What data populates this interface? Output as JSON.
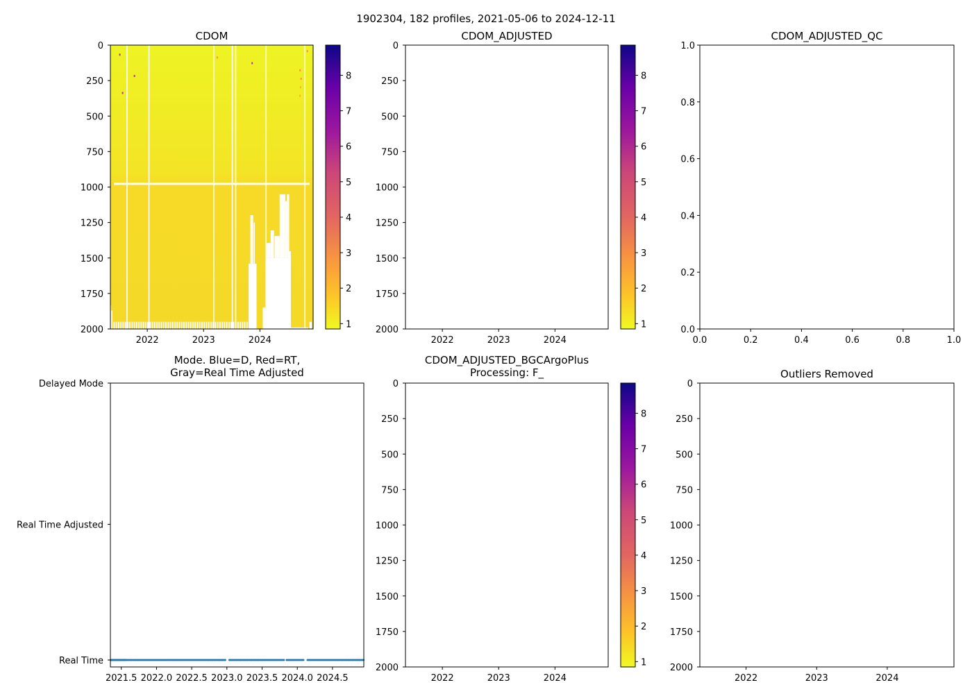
{
  "suptitle": "1902304, 182 profiles, 2021-05-06 to 2024-12-11",
  "colors": {
    "data_yellow_top": "#eef424",
    "data_yellow_bottom": "#f6d92a",
    "mode_point": "#1f77b4"
  },
  "chart_data": [
    {
      "id": "cdom",
      "type": "heatmap",
      "title": "CDOM",
      "x_range": [
        2021.345,
        2024.945
      ],
      "x_ticks": [
        {
          "v": 2022,
          "label": "2022"
        },
        {
          "v": 2023,
          "label": "2023"
        },
        {
          "v": 2024,
          "label": "2024"
        }
      ],
      "y_range": [
        2000,
        0
      ],
      "y_ticks": [
        {
          "v": 0,
          "label": "0"
        },
        {
          "v": 250,
          "label": "250"
        },
        {
          "v": 500,
          "label": "500"
        },
        {
          "v": 750,
          "label": "750"
        },
        {
          "v": 1000,
          "label": "1000"
        },
        {
          "v": 1250,
          "label": "1250"
        },
        {
          "v": 1500,
          "label": "1500"
        },
        {
          "v": 1750,
          "label": "1750"
        },
        {
          "v": 2000,
          "label": "2000"
        }
      ],
      "profiles": 182,
      "value_range_typical": [
        0.9,
        1.6
      ],
      "colorbar": {
        "colormap": "plasma_r",
        "range": [
          0.85,
          8.85
        ],
        "ticks": [
          {
            "v": 1,
            "label": "1"
          },
          {
            "v": 2,
            "label": "2"
          },
          {
            "v": 3,
            "label": "3"
          },
          {
            "v": 4,
            "label": "4"
          },
          {
            "v": 5,
            "label": "5"
          },
          {
            "v": 6,
            "label": "6"
          },
          {
            "v": 7,
            "label": "7"
          },
          {
            "v": 8,
            "label": "8"
          }
        ]
      },
      "missing_profile_dates": [
        2021.63,
        2022.02,
        2023.17,
        2023.5,
        2023.56,
        2024.1,
        2024.79
      ],
      "missing_depth_band": [
        970,
        985
      ],
      "missing_blocks": [
        [
          2023.8,
          2023.94,
          1540,
          2000
        ],
        [
          2023.83,
          2023.88,
          1198,
          1540
        ],
        [
          2023.89,
          2023.91,
          1250,
          1540
        ],
        [
          2024.05,
          2024.13,
          1848,
          2000
        ],
        [
          2024.1,
          2024.52,
          1500,
          2000
        ],
        [
          2024.12,
          2024.19,
          1394,
          1500
        ],
        [
          2024.19,
          2024.25,
          1306,
          1500
        ],
        [
          2024.26,
          2024.35,
          1345,
          1500
        ],
        [
          2024.35,
          2024.45,
          1051,
          1500
        ],
        [
          2024.45,
          2024.48,
          1100,
          1500
        ],
        [
          2024.48,
          2024.52,
          1051,
          1500
        ],
        [
          2024.52,
          2024.55,
          1452,
          2000
        ],
        [
          2024.55,
          2024.86,
          1990,
          2000
        ],
        [
          2024.88,
          2024.92,
          1950,
          2000
        ],
        [
          2021.345,
          2021.36,
          1835,
          2000
        ],
        [
          2021.36,
          2021.38,
          1870,
          2000
        ]
      ],
      "outliers": [
        [
          2021.5,
          60,
          5.5
        ],
        [
          2021.76,
          210,
          6.5
        ],
        [
          2021.55,
          330,
          6.0
        ],
        [
          2023.23,
          80,
          3.0
        ],
        [
          2023.85,
          120,
          6.5
        ],
        [
          2024.7,
          170,
          3.5
        ],
        [
          2024.72,
          230,
          3.0
        ],
        [
          2024.71,
          290,
          2.5
        ],
        [
          2024.7,
          350,
          2.2
        ],
        [
          2024.83,
          35,
          3.0
        ]
      ]
    },
    {
      "id": "cdom_adjusted",
      "type": "heatmap",
      "title": "CDOM_ADJUSTED",
      "empty": true,
      "x_range": [
        2021.345,
        2024.945
      ],
      "y_range": [
        2000,
        0
      ],
      "colorbar": {
        "colormap": "plasma_r",
        "range": [
          0.85,
          8.85
        ]
      }
    },
    {
      "id": "cdom_adjusted_qc",
      "type": "scatter",
      "title": "CDOM_ADJUSTED_QC",
      "empty": true,
      "x_range": [
        0,
        1
      ],
      "y_range": [
        0,
        1
      ],
      "x_ticks": [
        {
          "v": 0,
          "label": "0.0"
        },
        {
          "v": 0.2,
          "label": "0.2"
        },
        {
          "v": 0.4,
          "label": "0.4"
        },
        {
          "v": 0.6,
          "label": "0.6"
        },
        {
          "v": 0.8,
          "label": "0.8"
        },
        {
          "v": 1,
          "label": "1.0"
        }
      ],
      "y_ticks": [
        {
          "v": 0,
          "label": "0.0"
        },
        {
          "v": 0.2,
          "label": "0.2"
        },
        {
          "v": 0.4,
          "label": "0.4"
        },
        {
          "v": 0.6,
          "label": "0.6"
        },
        {
          "v": 0.8,
          "label": "0.8"
        },
        {
          "v": 1,
          "label": "1.0"
        }
      ]
    },
    {
      "id": "mode",
      "type": "scatter",
      "title_lines": [
        "Mode. Blue=D, Red=RT,",
        "Gray=Real Time Adjusted"
      ],
      "x_range": [
        2021.345,
        2024.945
      ],
      "x_ticks": [
        {
          "v": 2021.5,
          "label": "2021.5"
        },
        {
          "v": 2022.0,
          "label": "2022.0"
        },
        {
          "v": 2022.5,
          "label": "2022.5"
        },
        {
          "v": 2023.0,
          "label": "2023.0"
        },
        {
          "v": 2023.5,
          "label": "2023.5"
        },
        {
          "v": 2024.0,
          "label": "2024.0"
        },
        {
          "v": 2024.5,
          "label": "2024.5"
        }
      ],
      "y_categories": [
        {
          "v": 0,
          "label": "Real Time"
        },
        {
          "v": 1,
          "label": "Real Time Adjusted"
        },
        {
          "v": 2,
          "label": "Delayed Mode"
        }
      ],
      "points_mode": 0,
      "points_count": 182,
      "gaps": [
        [
          2022.99,
          2023.02
        ],
        [
          2023.81,
          2023.83
        ],
        [
          2024.1,
          2024.13
        ]
      ]
    },
    {
      "id": "bgcargoplus",
      "type": "heatmap",
      "title_lines": [
        "CDOM_ADJUSTED_BGCArgoPlus",
        "Processing: F_"
      ],
      "empty": true,
      "x_range": [
        2021.345,
        2024.945
      ],
      "y_range": [
        2000,
        0
      ],
      "colorbar": {
        "colormap": "plasma_r",
        "range": [
          0.85,
          8.85
        ]
      }
    },
    {
      "id": "outliers_removed",
      "type": "heatmap",
      "title": "Outliers Removed",
      "empty": true,
      "x_range": [
        2021.345,
        2024.945
      ],
      "y_range": [
        2000,
        0
      ]
    }
  ]
}
